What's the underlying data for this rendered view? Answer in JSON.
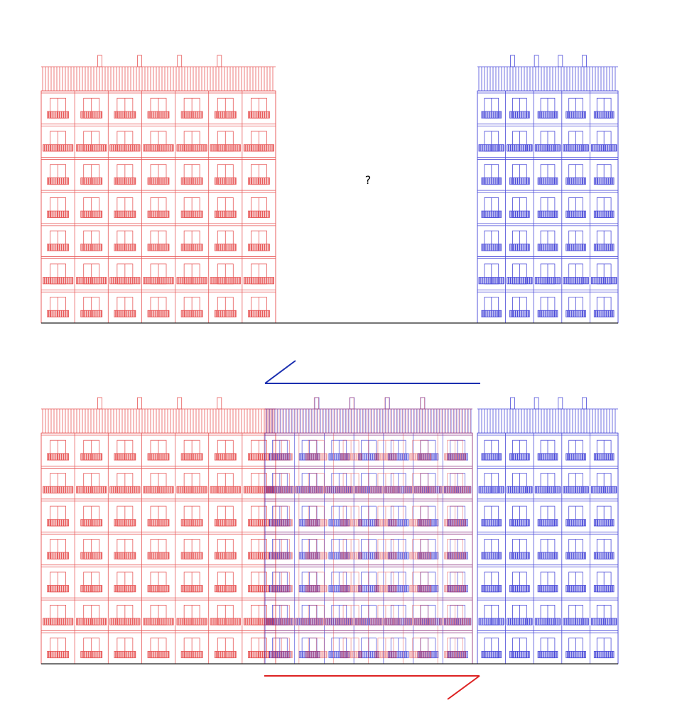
{
  "annotation": "?"
}
